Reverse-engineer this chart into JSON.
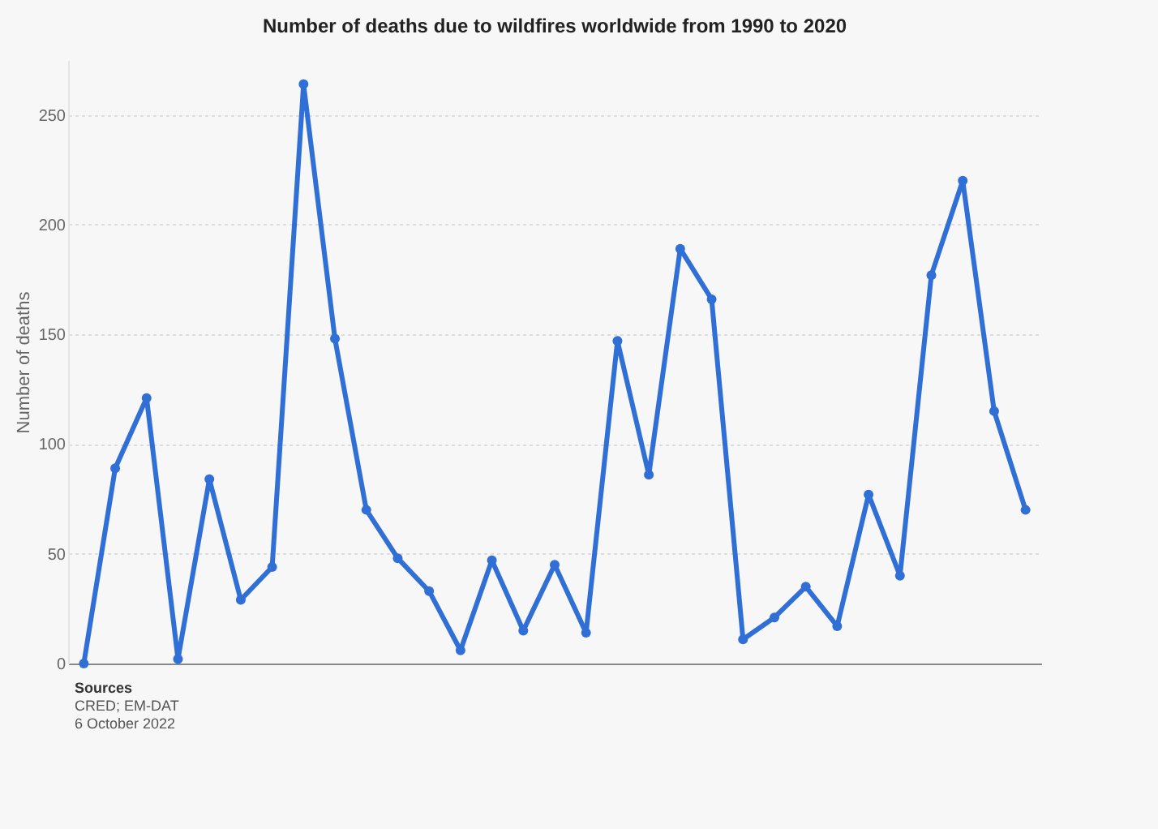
{
  "chart_data": {
    "type": "line",
    "title": "Number of deaths due to wildfires worldwide from 1990 to 2020",
    "ylabel": "Number of deaths",
    "categories": [
      null,
      null,
      null,
      null,
      null,
      null,
      null,
      null,
      null,
      null,
      null,
      null,
      null,
      null,
      null,
      null,
      null,
      null,
      null,
      null,
      null,
      null,
      null,
      null,
      null,
      null,
      null,
      null,
      null,
      null,
      null
    ],
    "series": [
      {
        "color": "#2f6fd6",
        "values": [
          0,
          89,
          121,
          2,
          84,
          29,
          44,
          264,
          148,
          70,
          48,
          33,
          6,
          47,
          15,
          45,
          14,
          147,
          86,
          189,
          166,
          11,
          21,
          35,
          17,
          77,
          40,
          177,
          220,
          115,
          70
        ]
      }
    ],
    "ylim": [
      0,
      275
    ],
    "yticks": [
      0,
      50,
      100,
      150,
      200,
      250
    ],
    "grid": "y",
    "marker": "circle",
    "line_style": "solid",
    "tick_labels": "y",
    "annotations": [
      "Sources",
      "CRED; EM-DAT",
      "6 October 2022"
    ]
  }
}
